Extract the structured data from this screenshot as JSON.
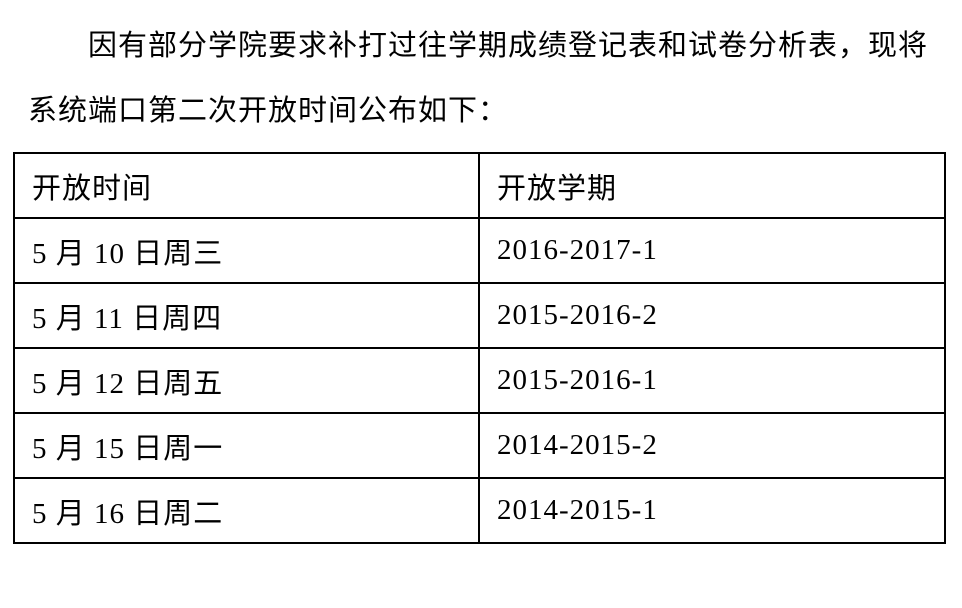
{
  "notice": {
    "line1": "因有部分学院要求补打过往学期成绩登记表和试卷分析表，现将",
    "line2": "系统端口第二次开放时间公布如下："
  },
  "table": {
    "headers": [
      "开放时间",
      "开放学期"
    ],
    "rows": [
      [
        "5 月 10 日周三",
        "2016-2017-1"
      ],
      [
        "5 月 11 日周四",
        "2015-2016-2"
      ],
      [
        "5 月 12 日周五",
        "2015-2016-1"
      ],
      [
        "5 月 15 日周一",
        "2014-2015-2"
      ],
      [
        "5 月 16 日周二",
        "2014-2015-1"
      ]
    ]
  },
  "colors": {
    "text": "#000000",
    "border": "#000000",
    "background": "#ffffff"
  }
}
